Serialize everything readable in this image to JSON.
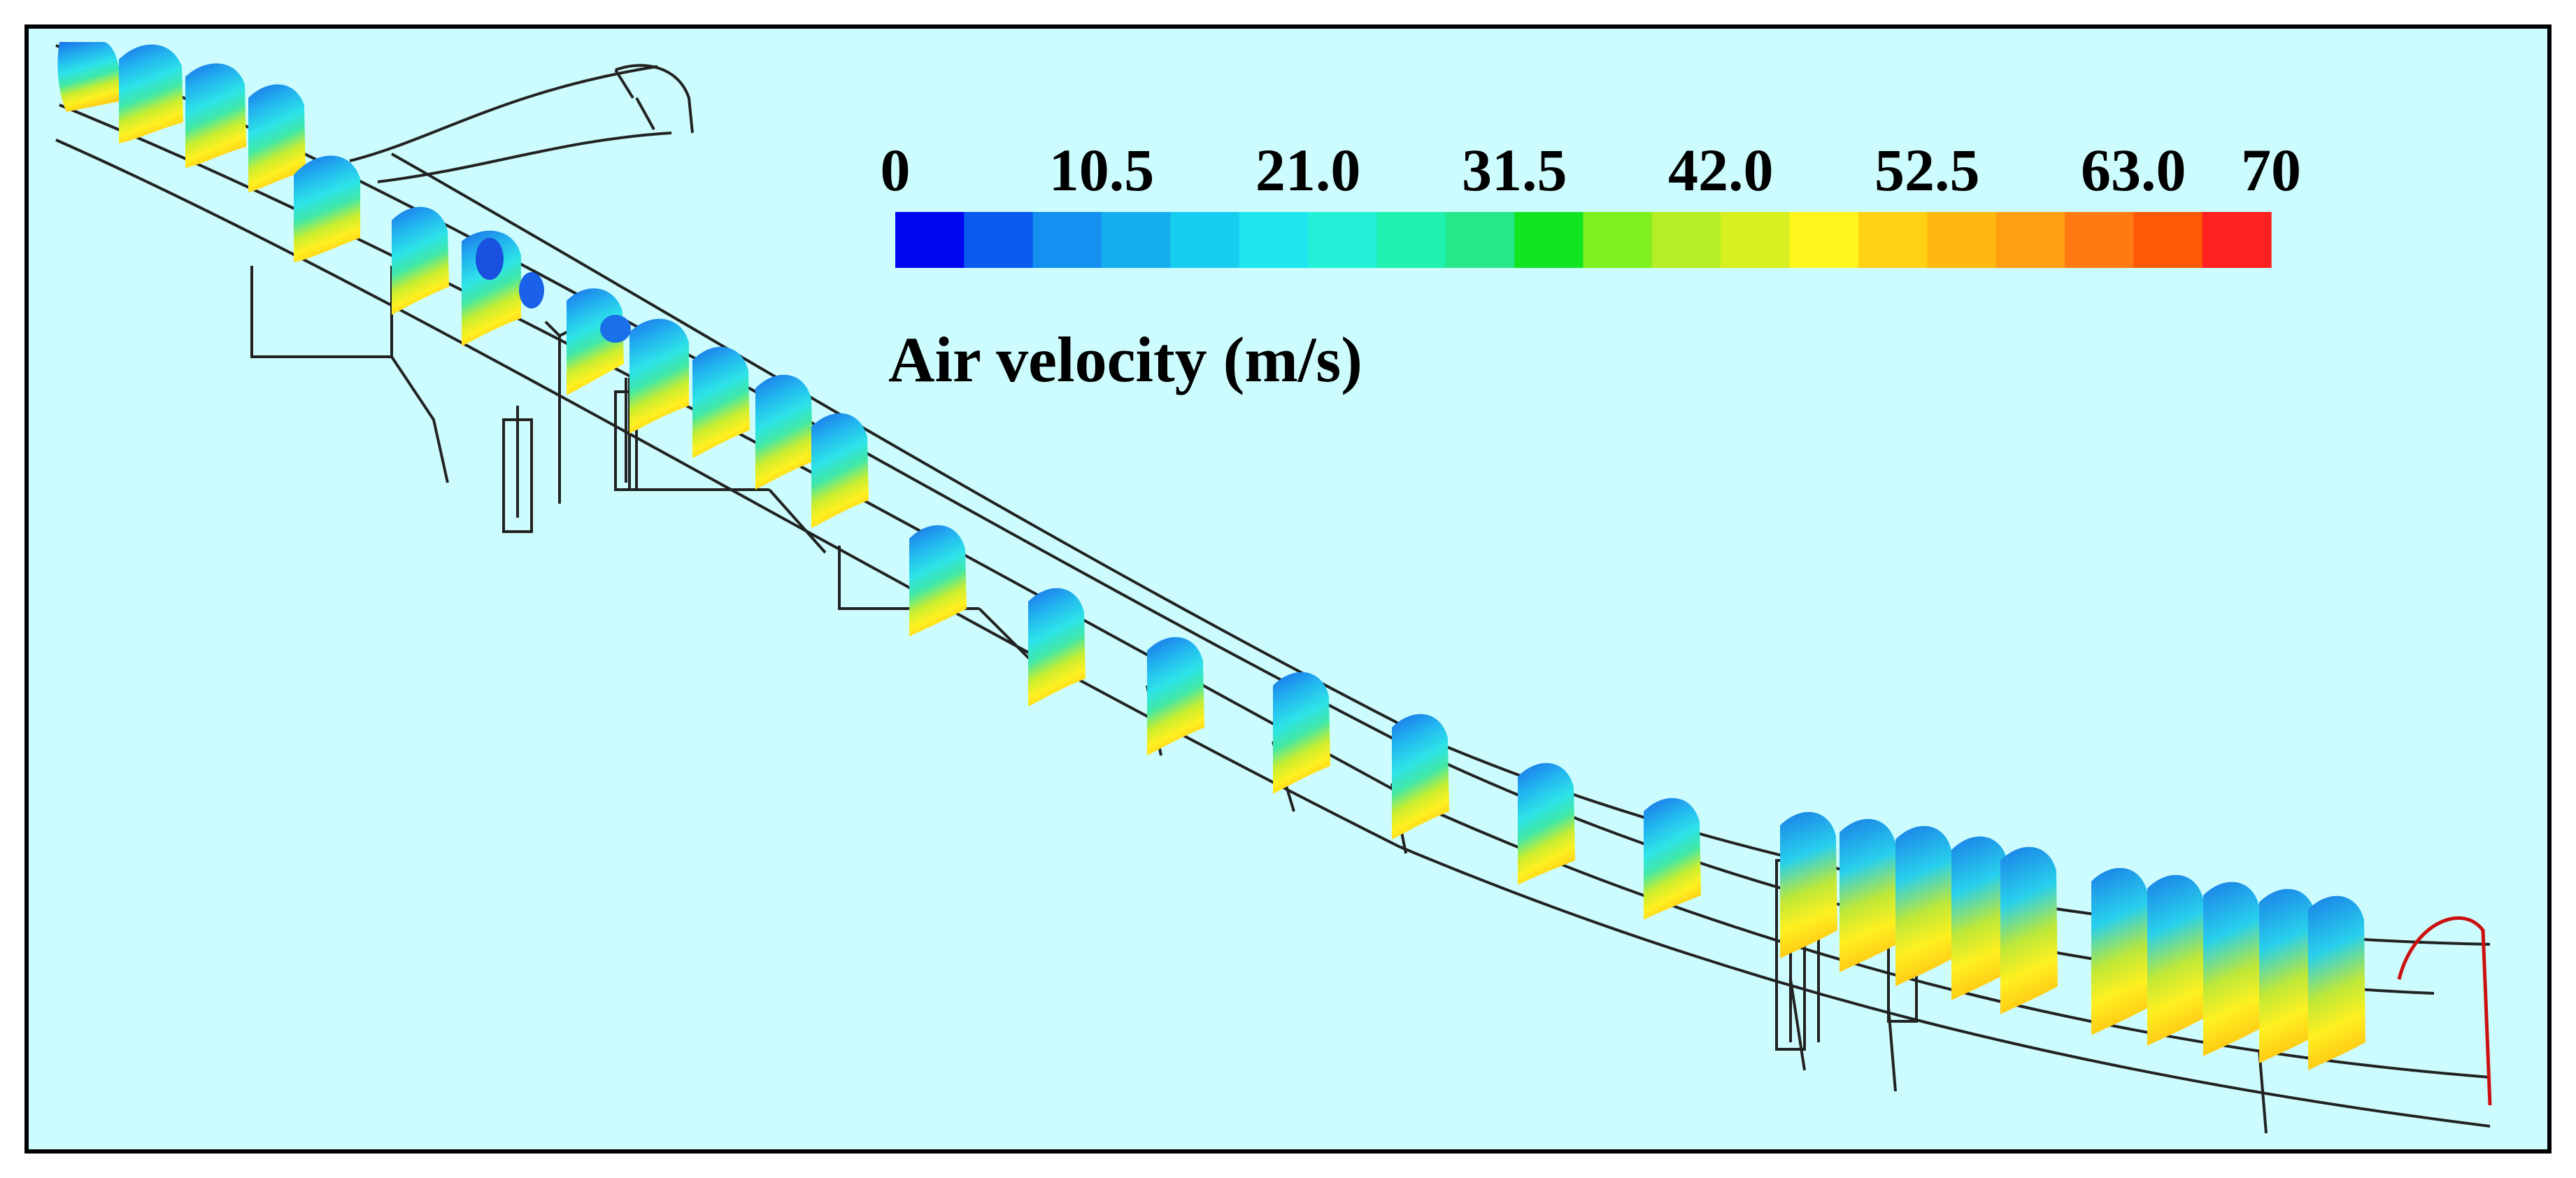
{
  "colorbar": {
    "title": "Air velocity (m/s)",
    "tick_labels": [
      "0",
      "10.5",
      "21.0",
      "31.5",
      "42.0",
      "52.5",
      "63.0",
      "70"
    ],
    "tick_values": [
      0,
      10.5,
      21.0,
      31.5,
      42.0,
      52.5,
      63.0,
      70
    ],
    "range": [
      0,
      70
    ],
    "colors": [
      "#0008f0",
      "#0a5bf0",
      "#1490f0",
      "#15aff0",
      "#17cdf0",
      "#1de6ee",
      "#22f0d8",
      "#20f0b0",
      "#25e88a",
      "#10e620",
      "#7ff01e",
      "#b4ee26",
      "#d8f020",
      "#fff61c",
      "#ffd214",
      "#ffb810",
      "#ffa010",
      "#ff7a10",
      "#ff5a08",
      "#ff2020"
    ]
  },
  "background_color": "#ccfcfd",
  "tunnel_outline_color": "#222222",
  "portal_outline_color": "#cc1010"
}
